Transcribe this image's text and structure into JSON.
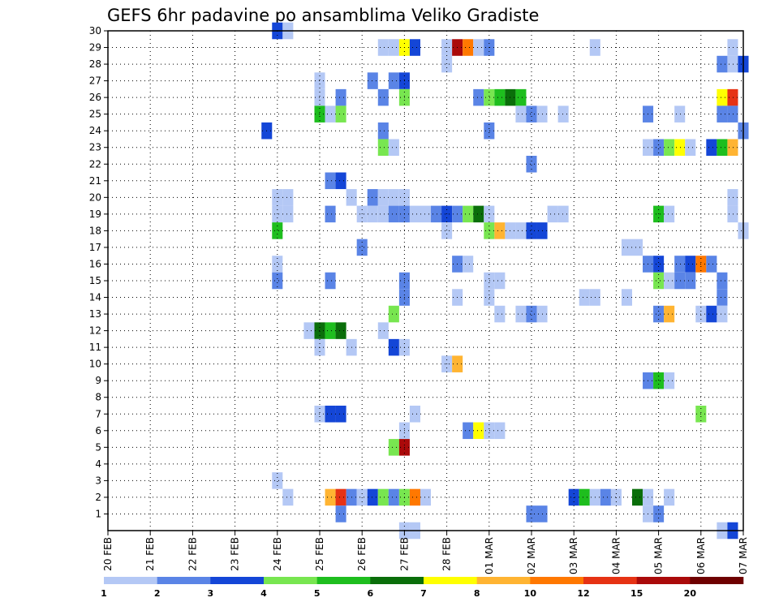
{
  "chart_data": {
    "type": "heatmap",
    "title": "GEFS 6hr padavine po ansamblima Veliko Gradiste",
    "xlabel": "",
    "ylabel": "",
    "x_ticks": [
      "20 FEB",
      "21 FEB",
      "22 FEB",
      "23 FEB",
      "24 FEB",
      "25 FEB",
      "26 FEB",
      "27 FEB",
      "28 FEB",
      "01 MAR",
      "02 MAR",
      "03 MAR",
      "04 MAR",
      "05 MAR",
      "06 MAR",
      "07 MAR"
    ],
    "y_ticks": [
      1,
      2,
      3,
      4,
      5,
      6,
      7,
      8,
      9,
      10,
      11,
      12,
      13,
      14,
      15,
      16,
      17,
      18,
      19,
      20,
      21,
      22,
      23,
      24,
      25,
      26,
      27,
      28,
      29,
      30
    ],
    "x_unit": "6hr step from 20 FEB 00Z",
    "x_range": [
      0,
      60
    ],
    "y_range": [
      0,
      30
    ],
    "grid": true,
    "colorbar": {
      "labels": [
        "1",
        "2",
        "3",
        "4",
        "5",
        "6",
        "7",
        "8",
        "10",
        "12",
        "15",
        "20"
      ],
      "colors": [
        "#b4c8f5",
        "#5a84e6",
        "#1446d7",
        "#78e650",
        "#1ebe1e",
        "#0a6e0a",
        "#ffff00",
        "#ffb432",
        "#ff7800",
        "#e63214",
        "#aa0a0a",
        "#6e0000"
      ]
    },
    "cells": [
      [
        16,
        30,
        2
      ],
      [
        17,
        30,
        0
      ],
      [
        26,
        29,
        0
      ],
      [
        27,
        29,
        0
      ],
      [
        28,
        29,
        6
      ],
      [
        29,
        29,
        2
      ],
      [
        32,
        29,
        0
      ],
      [
        33,
        29,
        10
      ],
      [
        34,
        29,
        8
      ],
      [
        35,
        29,
        0
      ],
      [
        36,
        29,
        1
      ],
      [
        46,
        29,
        0
      ],
      [
        59,
        29,
        0
      ],
      [
        32,
        28,
        0
      ],
      [
        58,
        28,
        1
      ],
      [
        59,
        28,
        0
      ],
      [
        60,
        28,
        2
      ],
      [
        20,
        27,
        0
      ],
      [
        25,
        27,
        1
      ],
      [
        27,
        27,
        1
      ],
      [
        28,
        27,
        2
      ],
      [
        20,
        26,
        0
      ],
      [
        22,
        26,
        1
      ],
      [
        26,
        26,
        1
      ],
      [
        28,
        26,
        3
      ],
      [
        35,
        26,
        1
      ],
      [
        36,
        26,
        3
      ],
      [
        37,
        26,
        4
      ],
      [
        38,
        26,
        5
      ],
      [
        39,
        26,
        4
      ],
      [
        58,
        26,
        6
      ],
      [
        59,
        26,
        9
      ],
      [
        20,
        25,
        4
      ],
      [
        21,
        25,
        0
      ],
      [
        22,
        25,
        3
      ],
      [
        39,
        25,
        0
      ],
      [
        40,
        25,
        1
      ],
      [
        41,
        25,
        0
      ],
      [
        43,
        25,
        0
      ],
      [
        51,
        25,
        1
      ],
      [
        54,
        25,
        0
      ],
      [
        58,
        25,
        1
      ],
      [
        59,
        25,
        1
      ],
      [
        15,
        24,
        2
      ],
      [
        26,
        24,
        1
      ],
      [
        36,
        24,
        1
      ],
      [
        60,
        24,
        1
      ],
      [
        26,
        23,
        3
      ],
      [
        27,
        23,
        0
      ],
      [
        51,
        23,
        0
      ],
      [
        52,
        23,
        1
      ],
      [
        53,
        23,
        3
      ],
      [
        54,
        23,
        6
      ],
      [
        55,
        23,
        0
      ],
      [
        57,
        23,
        2
      ],
      [
        58,
        23,
        4
      ],
      [
        59,
        23,
        7
      ],
      [
        40,
        22,
        1
      ],
      [
        21,
        21,
        1
      ],
      [
        22,
        21,
        2
      ],
      [
        16,
        20,
        0
      ],
      [
        17,
        20,
        0
      ],
      [
        23,
        20,
        0
      ],
      [
        25,
        20,
        1
      ],
      [
        26,
        20,
        0
      ],
      [
        27,
        20,
        0
      ],
      [
        28,
        20,
        0
      ],
      [
        59,
        20,
        0
      ],
      [
        16,
        19,
        0
      ],
      [
        17,
        19,
        0
      ],
      [
        21,
        19,
        1
      ],
      [
        24,
        19,
        0
      ],
      [
        25,
        19,
        0
      ],
      [
        26,
        19,
        0
      ],
      [
        27,
        19,
        1
      ],
      [
        28,
        19,
        1
      ],
      [
        29,
        19,
        0
      ],
      [
        30,
        19,
        0
      ],
      [
        31,
        19,
        1
      ],
      [
        32,
        19,
        2
      ],
      [
        33,
        19,
        1
      ],
      [
        34,
        19,
        3
      ],
      [
        35,
        19,
        5
      ],
      [
        36,
        19,
        0
      ],
      [
        42,
        19,
        0
      ],
      [
        43,
        19,
        0
      ],
      [
        52,
        19,
        4
      ],
      [
        53,
        19,
        0
      ],
      [
        59,
        19,
        0
      ],
      [
        16,
        18,
        4
      ],
      [
        32,
        18,
        0
      ],
      [
        36,
        18,
        3
      ],
      [
        37,
        18,
        7
      ],
      [
        38,
        18,
        0
      ],
      [
        39,
        18,
        0
      ],
      [
        40,
        18,
        2
      ],
      [
        41,
        18,
        2
      ],
      [
        60,
        18,
        0
      ],
      [
        24,
        17,
        1
      ],
      [
        49,
        17,
        0
      ],
      [
        50,
        17,
        0
      ],
      [
        16,
        16,
        0
      ],
      [
        33,
        16,
        1
      ],
      [
        34,
        16,
        0
      ],
      [
        51,
        16,
        1
      ],
      [
        52,
        16,
        2
      ],
      [
        54,
        16,
        1
      ],
      [
        55,
        16,
        2
      ],
      [
        56,
        16,
        8
      ],
      [
        57,
        16,
        1
      ],
      [
        16,
        15,
        1
      ],
      [
        21,
        15,
        1
      ],
      [
        28,
        15,
        1
      ],
      [
        36,
        15,
        0
      ],
      [
        37,
        15,
        0
      ],
      [
        52,
        15,
        3
      ],
      [
        53,
        15,
        0
      ],
      [
        54,
        15,
        1
      ],
      [
        55,
        15,
        1
      ],
      [
        58,
        15,
        1
      ],
      [
        28,
        14,
        1
      ],
      [
        33,
        14,
        0
      ],
      [
        36,
        14,
        0
      ],
      [
        45,
        14,
        0
      ],
      [
        46,
        14,
        0
      ],
      [
        49,
        14,
        0
      ],
      [
        58,
        14,
        1
      ],
      [
        27,
        13,
        3
      ],
      [
        37,
        13,
        0
      ],
      [
        39,
        13,
        0
      ],
      [
        40,
        13,
        1
      ],
      [
        41,
        13,
        0
      ],
      [
        52,
        13,
        1
      ],
      [
        53,
        13,
        7
      ],
      [
        56,
        13,
        0
      ],
      [
        57,
        13,
        2
      ],
      [
        58,
        13,
        0
      ],
      [
        19,
        12,
        0
      ],
      [
        20,
        12,
        5
      ],
      [
        21,
        12,
        4
      ],
      [
        22,
        12,
        5
      ],
      [
        26,
        12,
        0
      ],
      [
        20,
        11,
        0
      ],
      [
        23,
        11,
        0
      ],
      [
        27,
        11,
        2
      ],
      [
        28,
        11,
        0
      ],
      [
        32,
        10,
        0
      ],
      [
        33,
        10,
        7
      ],
      [
        51,
        9,
        1
      ],
      [
        52,
        9,
        4
      ],
      [
        53,
        9,
        0
      ],
      [
        20,
        7,
        0
      ],
      [
        21,
        7,
        2
      ],
      [
        22,
        7,
        2
      ],
      [
        29,
        7,
        0
      ],
      [
        56,
        7,
        3
      ],
      [
        28,
        6,
        0
      ],
      [
        34,
        6,
        1
      ],
      [
        35,
        6,
        6
      ],
      [
        36,
        6,
        0
      ],
      [
        37,
        6,
        0
      ],
      [
        27,
        5,
        3
      ],
      [
        28,
        5,
        10
      ],
      [
        16,
        3,
        0
      ],
      [
        17,
        2,
        0
      ],
      [
        21,
        2,
        7
      ],
      [
        22,
        2,
        9
      ],
      [
        23,
        2,
        1
      ],
      [
        24,
        2,
        0
      ],
      [
        25,
        2,
        2
      ],
      [
        26,
        2,
        3
      ],
      [
        27,
        2,
        1
      ],
      [
        28,
        2,
        3
      ],
      [
        29,
        2,
        8
      ],
      [
        30,
        2,
        0
      ],
      [
        44,
        2,
        2
      ],
      [
        45,
        2,
        4
      ],
      [
        46,
        2,
        0
      ],
      [
        47,
        2,
        1
      ],
      [
        48,
        2,
        0
      ],
      [
        50,
        2,
        5
      ],
      [
        51,
        2,
        0
      ],
      [
        53,
        2,
        0
      ],
      [
        22,
        1,
        1
      ],
      [
        40,
        1,
        1
      ],
      [
        41,
        1,
        1
      ],
      [
        51,
        1,
        0
      ],
      [
        52,
        1,
        1
      ],
      [
        28,
        0,
        0
      ],
      [
        29,
        0,
        0
      ],
      [
        58,
        0,
        0
      ],
      [
        59,
        0,
        2
      ]
    ]
  }
}
